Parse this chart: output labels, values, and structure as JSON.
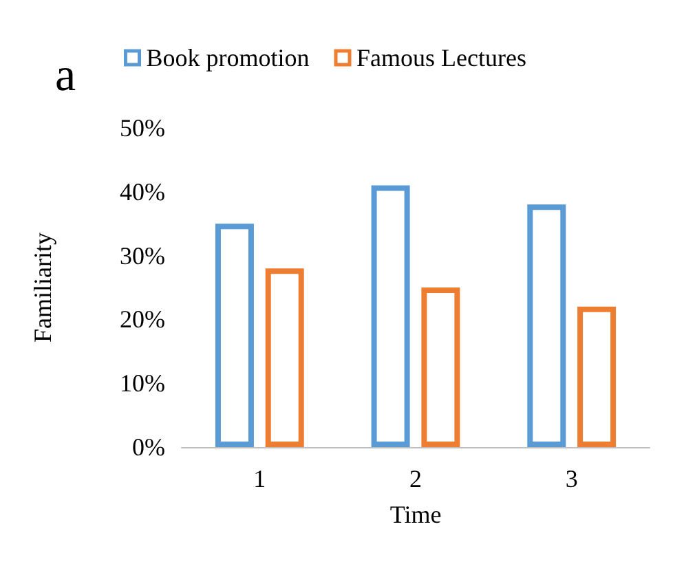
{
  "chart_data": {
    "type": "bar",
    "xlabel": "Time",
    "ylabel": "Familiarity",
    "annotations": [
      "a"
    ],
    "categories": [
      "1",
      "2",
      "3"
    ],
    "series": [
      {
        "name": "Book promotion",
        "color": "#5b9bd5",
        "values": [
          35,
          41,
          38
        ]
      },
      {
        "name": "Famous Lectures",
        "color": "#ed7d31",
        "values": [
          28,
          25,
          22
        ]
      }
    ],
    "ylim": [
      0,
      50
    ],
    "yticks": [
      {
        "value": 0,
        "label": "0%"
      },
      {
        "value": 10,
        "label": "10%"
      },
      {
        "value": 20,
        "label": "20%"
      },
      {
        "value": 30,
        "label": "30%"
      },
      {
        "value": 40,
        "label": "40%"
      },
      {
        "value": 50,
        "label": "50%"
      }
    ],
    "grid": false,
    "legend": "top"
  }
}
